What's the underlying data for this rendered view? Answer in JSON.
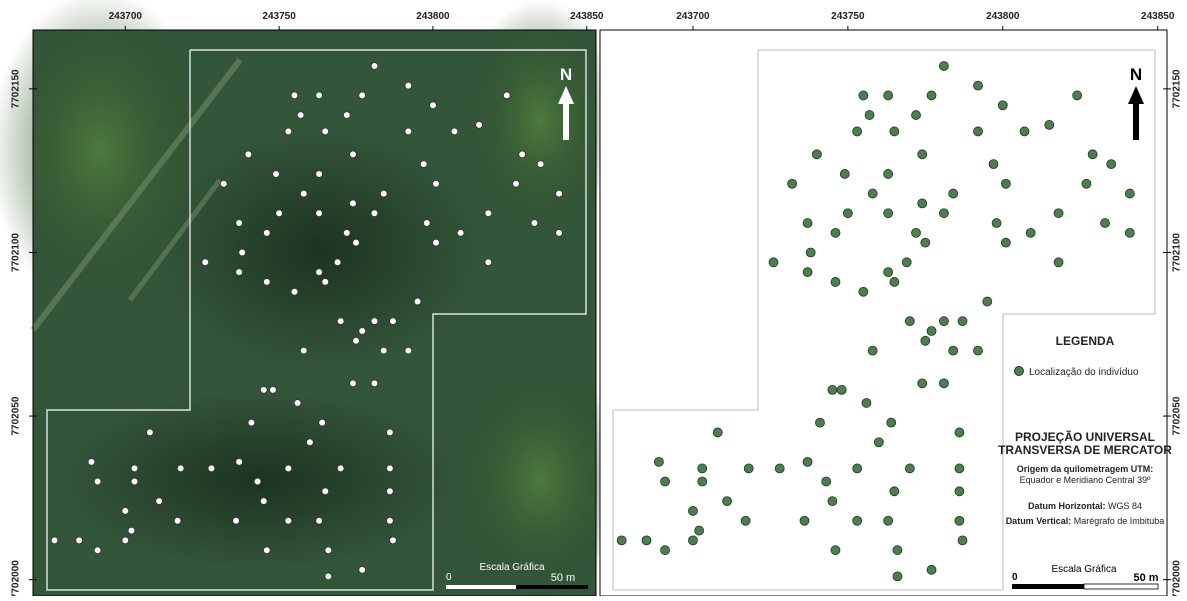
{
  "map": {
    "xlim": [
      243670,
      243853
    ],
    "ylim": [
      7701995,
      7702168
    ],
    "xticks": [
      243700,
      243750,
      243800,
      243850
    ],
    "yticks": [
      7702000,
      7702050,
      7702100,
      7702150
    ],
    "points": [
      [
        243781,
        7702157
      ],
      [
        243755,
        7702148
      ],
      [
        243763,
        7702148
      ],
      [
        243777,
        7702148
      ],
      [
        243792,
        7702151
      ],
      [
        243824,
        7702148
      ],
      [
        243800,
        7702145
      ],
      [
        243757,
        7702142
      ],
      [
        243772,
        7702142
      ],
      [
        243815,
        7702139
      ],
      [
        243753,
        7702137
      ],
      [
        243765,
        7702137
      ],
      [
        243792,
        7702137
      ],
      [
        243807,
        7702137
      ],
      [
        243740,
        7702130
      ],
      [
        243774,
        7702130
      ],
      [
        243797,
        7702127
      ],
      [
        243829,
        7702130
      ],
      [
        243749,
        7702124
      ],
      [
        243763,
        7702124
      ],
      [
        243835,
        7702127
      ],
      [
        243732,
        7702121
      ],
      [
        243801,
        7702121
      ],
      [
        243827,
        7702121
      ],
      [
        243758,
        7702118
      ],
      [
        243784,
        7702118
      ],
      [
        243841,
        7702118
      ],
      [
        243774,
        7702115
      ],
      [
        243750,
        7702112
      ],
      [
        243763,
        7702112
      ],
      [
        243781,
        7702112
      ],
      [
        243818,
        7702112
      ],
      [
        243737,
        7702109
      ],
      [
        243798,
        7702109
      ],
      [
        243833,
        7702109
      ],
      [
        243841,
        7702106
      ],
      [
        243746,
        7702106
      ],
      [
        243772,
        7702106
      ],
      [
        243809,
        7702106
      ],
      [
        243738,
        7702100
      ],
      [
        243775,
        7702103
      ],
      [
        243801,
        7702103
      ],
      [
        243726,
        7702097
      ],
      [
        243769,
        7702097
      ],
      [
        243818,
        7702097
      ],
      [
        243737,
        7702094
      ],
      [
        243763,
        7702094
      ],
      [
        243746,
        7702091
      ],
      [
        243765,
        7702091
      ],
      [
        243755,
        7702088
      ],
      [
        243795,
        7702085
      ],
      [
        243770,
        7702079
      ],
      [
        243781,
        7702079
      ],
      [
        243787,
        7702079
      ],
      [
        243777,
        7702076
      ],
      [
        243775,
        7702073
      ],
      [
        243758,
        7702070
      ],
      [
        243784,
        7702070
      ],
      [
        243792,
        7702070
      ],
      [
        243774,
        7702060
      ],
      [
        243781,
        7702060
      ],
      [
        243745,
        7702058
      ],
      [
        243748,
        7702058
      ],
      [
        243756,
        7702054
      ],
      [
        243741,
        7702048
      ],
      [
        243764,
        7702048
      ],
      [
        243786,
        7702045
      ],
      [
        243708,
        7702045
      ],
      [
        243760,
        7702042
      ],
      [
        243689,
        7702036
      ],
      [
        243737,
        7702036
      ],
      [
        243703,
        7702034
      ],
      [
        243718,
        7702034
      ],
      [
        243728,
        7702034
      ],
      [
        243753,
        7702034
      ],
      [
        243770,
        7702034
      ],
      [
        243786,
        7702034
      ],
      [
        243691,
        7702030
      ],
      [
        243703,
        7702030
      ],
      [
        243743,
        7702030
      ],
      [
        243765,
        7702027
      ],
      [
        243786,
        7702027
      ],
      [
        243711,
        7702024
      ],
      [
        243745,
        7702024
      ],
      [
        243700,
        7702021
      ],
      [
        243717,
        7702018
      ],
      [
        243736,
        7702018
      ],
      [
        243753,
        7702018
      ],
      [
        243763,
        7702018
      ],
      [
        243702,
        7702015
      ],
      [
        243786,
        7702018
      ],
      [
        243677,
        7702012
      ],
      [
        243685,
        7702012
      ],
      [
        243700,
        7702012
      ],
      [
        243787,
        7702012
      ],
      [
        243691,
        7702009
      ],
      [
        243746,
        7702009
      ],
      [
        243766,
        7702009
      ],
      [
        243777,
        7702003
      ],
      [
        243766,
        7702001
      ]
    ]
  },
  "left_panel": {
    "north": "N",
    "scale_title": "Escala Gráfica",
    "scale_start": "0",
    "scale_end": "50 m",
    "point_color": "#ffffff"
  },
  "right_panel": {
    "north": "N",
    "scale_title": "Escala Gráfica",
    "scale_start": "0",
    "scale_end": "50 m",
    "point_color": "#4f7d4f",
    "legend": {
      "title": "LEGENDA",
      "item": "Localização do indivíduo",
      "projection": [
        "PROJEÇÃO UNIVERSAL",
        "TRANSVERSA DE MERCATOR"
      ],
      "origin_label": "Origem da quilometragem UTM:",
      "origin_text": "Equador e Meridiano Central 39º",
      "datum_h_label": "Datum Horizontal:",
      "datum_h_text": "WGS 84",
      "datum_v_label": "Datum Vertical:",
      "datum_v_text": "Marégrafo de Imbituba"
    }
  }
}
